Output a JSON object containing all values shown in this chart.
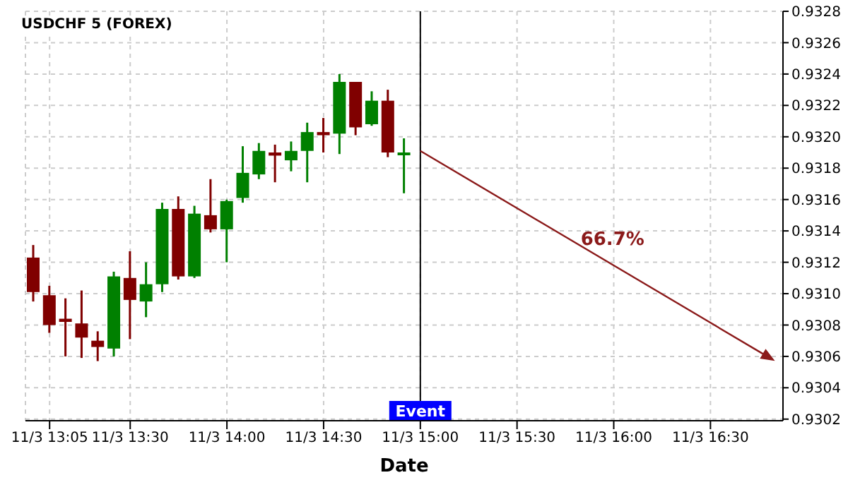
{
  "chart_data": {
    "type": "candlestick",
    "title": "USDCHF 5 (FOREX)",
    "xlabel": "Date",
    "categories": [
      null,
      "11/3 13:05",
      null,
      null,
      null,
      null,
      "11/3 13:30",
      null,
      null,
      null,
      null,
      null,
      "11/3 14:00",
      null,
      null,
      null,
      null,
      null,
      "11/3 14:30",
      null,
      null,
      null,
      null,
      null,
      "11/3 15:00",
      null,
      null,
      null,
      null,
      null,
      "11/3 15:30",
      null,
      null,
      null,
      null,
      null,
      "11/3 16:00",
      null,
      null,
      null,
      null,
      null,
      "11/3 16:30",
      null,
      null,
      null,
      null
    ],
    "ohlc": [
      [
        0.93123,
        0.93131,
        0.93095,
        0.93101
      ],
      [
        0.93099,
        0.93105,
        0.93075,
        0.9308
      ],
      [
        0.93084,
        0.93097,
        0.9306,
        0.93082
      ],
      [
        0.93081,
        0.93102,
        0.93059,
        0.93072
      ],
      [
        0.9307,
        0.93076,
        0.93057,
        0.93066
      ],
      [
        0.93065,
        0.93114,
        0.9306,
        0.93111
      ],
      [
        0.9311,
        0.93127,
        0.93071,
        0.93096
      ],
      [
        0.93095,
        0.9312,
        0.93085,
        0.93106
      ],
      [
        0.93106,
        0.93158,
        0.93101,
        0.93154
      ],
      [
        0.93154,
        0.93162,
        0.93109,
        0.93111
      ],
      [
        0.93111,
        0.93156,
        0.9311,
        0.93151
      ],
      [
        0.9315,
        0.93173,
        0.93139,
        0.93141
      ],
      [
        0.93141,
        0.9316,
        0.9312,
        0.93159
      ],
      [
        0.93161,
        0.93194,
        0.93158,
        0.93177
      ],
      [
        0.93176,
        0.93196,
        0.93173,
        0.93191
      ],
      [
        0.9319,
        0.93195,
        0.93171,
        0.93188
      ],
      [
        0.93185,
        0.93197,
        0.93178,
        0.93191
      ],
      [
        0.93191,
        0.93209,
        0.93171,
        0.93203
      ],
      [
        0.93203,
        0.93212,
        0.9319,
        0.93201
      ],
      [
        0.93202,
        0.9324,
        0.93189,
        0.93235
      ],
      [
        0.93235,
        0.93235,
        0.93201,
        0.93206
      ],
      [
        0.93208,
        0.93229,
        0.93207,
        0.93223
      ],
      [
        0.93223,
        0.9323,
        0.93187,
        0.9319
      ],
      [
        0.93189,
        0.93199,
        0.93164,
        0.9319
      ],
      null,
      null,
      null,
      null,
      null,
      null,
      null,
      null,
      null,
      null,
      null,
      null,
      null,
      null,
      null,
      null,
      null,
      null,
      null,
      null,
      null,
      null,
      null
    ],
    "colors": [
      "#800000",
      "#800000",
      "#800000",
      "#800000",
      "#800000",
      "#008000",
      "#800000",
      "#008000",
      "#008000",
      "#800000",
      "#008000",
      "#800000",
      "#008000",
      "#008000",
      "#008000",
      "#800000",
      "#008000",
      "#008000",
      "#800000",
      "#008000",
      "#800000",
      "#008000",
      "#800000",
      "#008000",
      null,
      null,
      null,
      null,
      null,
      null,
      null,
      null,
      null,
      null,
      null,
      null,
      null,
      null,
      null,
      null,
      null,
      null,
      null,
      null,
      null,
      null,
      null
    ],
    "annotations": [
      "66.7%"
    ],
    "ref_lines": [
      {
        "axis": "x",
        "value": "11/3 15:00",
        "label": "Event",
        "color": "#000000"
      }
    ],
    "ylim": [
      0.93019,
      0.9328
    ],
    "yticks": [
      0.9302,
      0.9304,
      0.9306,
      0.9308,
      {
        "value": 0.931,
        "label": "0.9310"
      },
      0.9312,
      0.9314,
      0.9316,
      0.9318,
      {
        "value": 0.932,
        "label": "0.9320"
      },
      0.9322,
      0.9324,
      0.9326,
      0.9328
    ],
    "grid": true
  }
}
